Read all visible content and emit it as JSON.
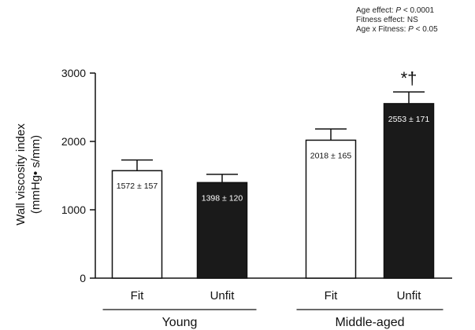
{
  "stats": [
    {
      "label": "Age effect: ",
      "p": "P",
      "rest": " < 0.0001"
    },
    {
      "label": "Fitness effect: NS",
      "p": "",
      "rest": ""
    },
    {
      "label": "Age x Fitness: ",
      "p": "P",
      "rest": " < 0.05"
    }
  ],
  "chart_data": {
    "type": "bar",
    "title": "",
    "ylabel_lines": [
      "Wall viscosity index",
      "(mmHg• s/mm)"
    ],
    "ylim": [
      0,
      3000
    ],
    "yticks": [
      0,
      1000,
      2000,
      3000
    ],
    "groups": [
      {
        "label": "Young",
        "categories": [
          0,
          1
        ]
      },
      {
        "label": "Middle-aged",
        "categories": [
          2,
          3
        ]
      }
    ],
    "bars": [
      {
        "category": "Fit",
        "group": "Young",
        "value": 1572,
        "error": 157,
        "label": "1572 ± 157",
        "fill": "#ffffff",
        "annotation": ""
      },
      {
        "category": "Unfit",
        "group": "Young",
        "value": 1398,
        "error": 120,
        "label": "1398 ± 120",
        "fill": "#1a1a1a",
        "annotation": ""
      },
      {
        "category": "Fit",
        "group": "Middle-aged",
        "value": 2018,
        "error": 165,
        "label": "2018 ± 165",
        "fill": "#ffffff",
        "annotation": ""
      },
      {
        "category": "Unfit",
        "group": "Middle-aged",
        "value": 2553,
        "error": 171,
        "label": "2553 ± 171",
        "fill": "#1a1a1a",
        "annotation": "*†"
      }
    ]
  }
}
